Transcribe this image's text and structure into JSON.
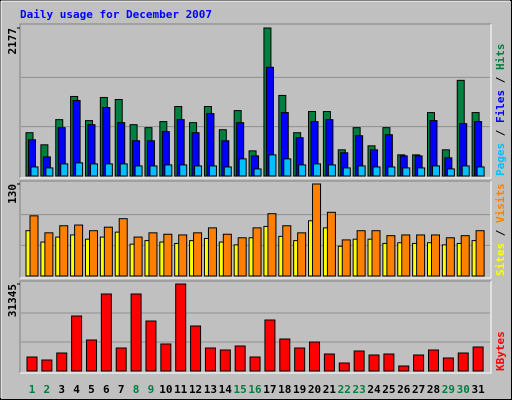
{
  "chart_data": [
    {
      "type": "bar",
      "title": "Daily usage for December 2007",
      "ylim": [
        0,
        2177
      ],
      "yticks": [
        2177
      ],
      "legend_separator": " / ",
      "legend_reverse": true,
      "series": [
        {
          "name": "Hits",
          "color": "#008040",
          "values": [
            637,
            459,
            829,
            1170,
            815,
            1155,
            1125,
            755,
            711,
            800,
            1022,
            785,
            1022,
            681,
            962,
            370,
            2177,
            1185,
            637,
            948,
            948,
            385,
            711,
            444,
            711,
            311,
            311,
            933,
            385,
            1407,
            933
          ]
        },
        {
          "name": "Files",
          "color": "#0000FF",
          "values": [
            533,
            281,
            711,
            1111,
            755,
            1007,
            785,
            518,
            518,
            652,
            829,
            637,
            918,
            518,
            785,
            296,
            1599,
            933,
            563,
            800,
            829,
            341,
            592,
            385,
            607,
            296,
            296,
            815,
            267,
            770,
            800
          ]
        },
        {
          "name": "Pages",
          "color": "#00C0FF",
          "values": [
            133,
            119,
            178,
            193,
            178,
            178,
            178,
            148,
            148,
            163,
            163,
            148,
            148,
            133,
            252,
            104,
            311,
            252,
            163,
            178,
            163,
            119,
            148,
            133,
            133,
            119,
            119,
            148,
            104,
            148,
            133
          ]
        }
      ]
    },
    {
      "type": "bar",
      "ylim": [
        0,
        130
      ],
      "yticks": [
        130
      ],
      "legend_separator": " / ",
      "legend_reverse": false,
      "series": [
        {
          "name": "Sites",
          "color": "#FFFF00",
          "values": [
            64,
            48,
            55,
            58,
            52,
            55,
            62,
            45,
            50,
            48,
            46,
            50,
            53,
            48,
            44,
            54,
            70,
            56,
            50,
            78,
            68,
            42,
            52,
            52,
            46,
            47,
            46,
            47,
            44,
            46,
            50
          ]
        },
        {
          "name": "Visits",
          "color": "#FF8000",
          "values": [
            85,
            61,
            71,
            72,
            64,
            69,
            81,
            55,
            61,
            59,
            58,
            61,
            68,
            59,
            54,
            68,
            88,
            71,
            61,
            130,
            90,
            51,
            64,
            64,
            57,
            58,
            58,
            58,
            54,
            57,
            64
          ]
        }
      ]
    },
    {
      "type": "bar",
      "ylim": [
        0,
        31345
      ],
      "yticks": [
        31345
      ],
      "legend_reverse": false,
      "categories": [
        "1",
        "2",
        "3",
        "4",
        "5",
        "6",
        "7",
        "8",
        "9",
        "10",
        "11",
        "12",
        "13",
        "14",
        "15",
        "16",
        "17",
        "18",
        "19",
        "20",
        "21",
        "22",
        "23",
        "24",
        "25",
        "26",
        "27",
        "28",
        "29",
        "30",
        "31"
      ],
      "category_colors": [
        "#008040",
        "#008040",
        "#000000",
        "#000000",
        "#000000",
        "#000000",
        "#000000",
        "#008040",
        "#008040",
        "#000000",
        "#000000",
        "#000000",
        "#000000",
        "#000000",
        "#008040",
        "#008040",
        "#000000",
        "#000000",
        "#000000",
        "#000000",
        "#000000",
        "#008040",
        "#008040",
        "#000000",
        "#000000",
        "#000000",
        "#000000",
        "#000000",
        "#008040",
        "#008040",
        "#000000"
      ],
      "series": [
        {
          "name": "KBytes",
          "color": "#FF0000",
          "values": [
            5044,
            3963,
            6485,
            19817,
            11169,
            27743,
            8287,
            27743,
            18015,
            9728,
            31345,
            16213,
            8287,
            7566,
            9007,
            5044,
            18375,
            11529,
            8287,
            10449,
            6125,
            2882,
            7206,
            5765,
            6125,
            1801,
            5765,
            7566,
            4684,
            6485,
            8647
          ]
        }
      ]
    }
  ]
}
